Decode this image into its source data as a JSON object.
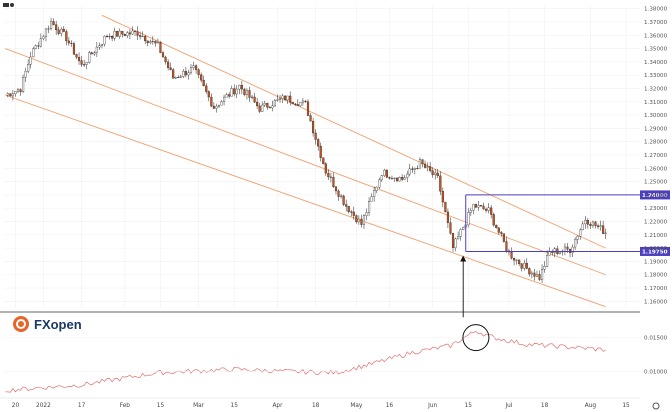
{
  "app": {
    "top_left_icon": "tradingview-mark",
    "logo_text": "FXopen",
    "logo_icon": "fxopen-sun-mark"
  },
  "chart_data": [
    {
      "type": "candlestick",
      "title": "",
      "candle_colors": {
        "up": "#ffffff",
        "down": "#c8511b",
        "wick": "#222222"
      },
      "y_ticks": [
        "1.38000",
        "1.37000",
        "1.36000",
        "1.35000",
        "1.34000",
        "1.33000",
        "1.32000",
        "1.31000",
        "1.30000",
        "1.29000",
        "1.28000",
        "1.27000",
        "1.26000",
        "1.25000",
        "1.24000",
        "1.23000",
        "1.22000",
        "1.21000",
        "1.20000",
        "1.19000",
        "1.18000",
        "1.17000",
        "1.16000"
      ],
      "ylim": [
        1.155,
        1.382
      ],
      "x_ticks": [
        "20",
        "2022",
        "17",
        "Feb",
        "15",
        "Mar",
        "15",
        "Apr",
        "18",
        "May",
        "16",
        "Jun",
        "15",
        "Jul",
        "18",
        "Aug",
        "15"
      ],
      "x_tick_index": [
        4,
        15,
        30,
        47,
        61,
        76,
        90,
        107,
        122,
        138,
        151,
        168,
        182,
        198,
        212,
        230,
        244
      ],
      "levels": [
        {
          "label": "1.24000",
          "value": 1.24,
          "color": "#4b3fbf"
        },
        {
          "label": "1.19750",
          "value": 1.1975,
          "color": "#4b3fbf"
        }
      ],
      "channel": {
        "color": "#f0a070",
        "lines": [
          {
            "x0": 38,
            "y0": 1.375,
            "x1": 236,
            "y1": 1.2
          },
          {
            "x0": 0,
            "y0": 1.35,
            "x1": 236,
            "y1": 1.18
          },
          {
            "x0": 0,
            "y0": 1.315,
            "x1": 236,
            "y1": 1.156
          }
        ]
      },
      "annotation": {
        "type": "arrow-up",
        "at_index": 180,
        "to_value": 1.196
      }
    },
    {
      "type": "line",
      "title": "",
      "color": "#e07070",
      "y_ticks": [
        "0.01500",
        "0.01000"
      ],
      "ylim": [
        0.0065,
        0.0185
      ],
      "highlight": {
        "type": "circle",
        "at_index": 185
      }
    }
  ]
}
